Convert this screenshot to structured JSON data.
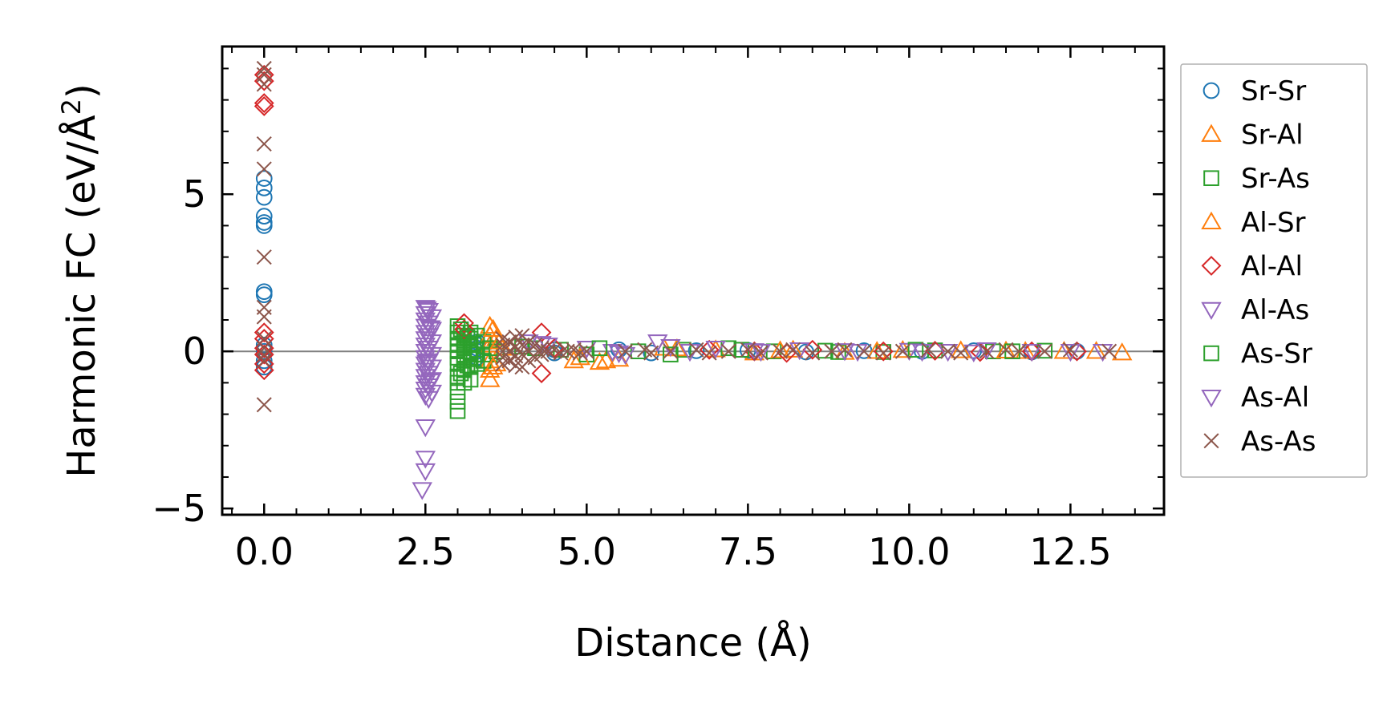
{
  "chart_data": {
    "type": "scatter",
    "title": "",
    "xlabel": "Distance (Å)",
    "ylabel": "Harmonic FC (eV/Å²)",
    "ylabel_main": "Harmonic FC (eV/Å",
    "ylabel_sup": "2",
    "ylabel_close": ")",
    "xlim": [
      -0.65,
      13.95
    ],
    "ylim": [
      -5.2,
      9.7
    ],
    "xticks": [
      0,
      2.5,
      5,
      7.5,
      10,
      12.5
    ],
    "xtick_labels": [
      "0.0",
      "2.5",
      "5.0",
      "7.5",
      "10.0",
      "12.5"
    ],
    "yticks": [
      -5,
      0,
      5
    ],
    "ytick_labels": [
      "−5",
      "0",
      "5"
    ],
    "zero_line": true,
    "legend_position": "right-outside",
    "series": [
      {
        "name": "Sr-Sr",
        "marker": "circle",
        "color": "#1f77b4",
        "points": [
          [
            0,
            5.5
          ],
          [
            0,
            5.2
          ],
          [
            0,
            4.9
          ],
          [
            0,
            4.3
          ],
          [
            0,
            4.1
          ],
          [
            0,
            4.0
          ],
          [
            0,
            1.9
          ],
          [
            0,
            1.8
          ],
          [
            0,
            0.2
          ],
          [
            0,
            0.0
          ],
          [
            0,
            -0.3
          ],
          [
            0,
            -0.5
          ],
          [
            3.3,
            0.3
          ],
          [
            3.3,
            0.2
          ],
          [
            3.3,
            0.1
          ],
          [
            3.3,
            0.0
          ],
          [
            3.3,
            -0.1
          ],
          [
            3.3,
            -0.2
          ],
          [
            4.5,
            0.05
          ],
          [
            4.5,
            -0.05
          ],
          [
            5.5,
            0.05
          ],
          [
            6.0,
            -0.05
          ],
          [
            6.7,
            0.02
          ],
          [
            7.5,
            0.03
          ],
          [
            8.4,
            -0.02
          ],
          [
            9.3,
            0.02
          ],
          [
            10.2,
            0.0
          ],
          [
            11.0,
            0.02
          ],
          [
            11.9,
            -0.02
          ],
          [
            12.6,
            0.0
          ]
        ]
      },
      {
        "name": "Sr-Al",
        "marker": "triangle-up",
        "color": "#ff7f0e",
        "points": [
          [
            3.5,
            0.8
          ],
          [
            3.5,
            0.5
          ],
          [
            3.5,
            0.2
          ],
          [
            3.5,
            -0.3
          ],
          [
            3.5,
            -0.6
          ],
          [
            3.5,
            -0.9
          ],
          [
            3.6,
            0.4
          ],
          [
            3.6,
            -0.4
          ],
          [
            3.7,
            0.1
          ],
          [
            4.8,
            -0.3
          ],
          [
            5.2,
            -0.35
          ],
          [
            5.5,
            -0.25
          ],
          [
            6.2,
            0.1
          ],
          [
            7.0,
            0.05
          ],
          [
            7.6,
            -0.05
          ],
          [
            8.2,
            0.04
          ],
          [
            9.0,
            -0.03
          ],
          [
            9.9,
            0.03
          ],
          [
            10.8,
            0.02
          ],
          [
            11.8,
            0.0
          ],
          [
            12.4,
            0.0
          ],
          [
            13.3,
            -0.05
          ]
        ]
      },
      {
        "name": "Sr-As",
        "marker": "square",
        "color": "#2ca02c",
        "points": [
          [
            3.0,
            0.8
          ],
          [
            3.0,
            0.6
          ],
          [
            3.0,
            0.4
          ],
          [
            3.0,
            0.2
          ],
          [
            3.0,
            0.0
          ],
          [
            3.0,
            -0.2
          ],
          [
            3.0,
            -0.4
          ],
          [
            3.0,
            -0.8
          ],
          [
            3.0,
            -1.0
          ],
          [
            3.0,
            -1.3
          ],
          [
            3.0,
            -1.6
          ],
          [
            3.0,
            -1.9
          ],
          [
            3.1,
            0.5
          ],
          [
            3.1,
            0.3
          ],
          [
            3.1,
            0.1
          ],
          [
            3.1,
            -0.1
          ],
          [
            3.1,
            -0.3
          ],
          [
            3.1,
            -0.6
          ],
          [
            3.1,
            -1.0
          ],
          [
            3.2,
            0.6
          ],
          [
            3.2,
            0.4
          ],
          [
            3.2,
            0.2
          ],
          [
            3.2,
            0.0
          ],
          [
            3.2,
            -0.2
          ],
          [
            3.2,
            -0.5
          ],
          [
            3.2,
            -0.9
          ],
          [
            3.3,
            0.5
          ],
          [
            3.3,
            -0.1
          ],
          [
            3.3,
            -0.4
          ],
          [
            3.4,
            0.3
          ],
          [
            3.4,
            -0.3
          ],
          [
            3.5,
            0.1
          ],
          [
            3.5,
            -0.1
          ],
          [
            3.6,
            0.0
          ],
          [
            4.2,
            0.1
          ],
          [
            4.6,
            0.05
          ],
          [
            5.0,
            -0.1
          ],
          [
            5.8,
            0.0
          ],
          [
            6.5,
            0.05
          ],
          [
            7.2,
            0.1
          ],
          [
            7.9,
            0.0
          ],
          [
            8.7,
            0.02
          ],
          [
            9.6,
            -0.02
          ],
          [
            10.4,
            0.03
          ],
          [
            11.3,
            0.0
          ],
          [
            12.1,
            0.02
          ]
        ]
      },
      {
        "name": "Al-Sr",
        "marker": "triangle-up",
        "color": "#ff7f0e",
        "points": [
          [
            3.55,
            0.7
          ],
          [
            3.55,
            -0.5
          ],
          [
            3.65,
            0.3
          ],
          [
            4.9,
            -0.2
          ],
          [
            5.3,
            -0.3
          ],
          [
            6.4,
            0.08
          ],
          [
            8.0,
            0.02
          ],
          [
            9.5,
            0.0
          ],
          [
            11.5,
            0.01
          ],
          [
            12.9,
            0.0
          ]
        ]
      },
      {
        "name": "Al-Al",
        "marker": "diamond",
        "color": "#d62728",
        "points": [
          [
            0,
            8.8
          ],
          [
            0,
            8.6
          ],
          [
            0,
            7.9
          ],
          [
            0,
            7.8
          ],
          [
            0,
            0.6
          ],
          [
            0,
            0.4
          ],
          [
            0,
            0.1
          ],
          [
            0,
            -0.1
          ],
          [
            0,
            -0.4
          ],
          [
            0,
            -0.6
          ],
          [
            3.1,
            0.9
          ],
          [
            3.1,
            0.7
          ],
          [
            4.3,
            0.6
          ],
          [
            4.3,
            -0.7
          ],
          [
            4.5,
            0.1
          ],
          [
            6.9,
            0.05
          ],
          [
            7.6,
            0.0
          ],
          [
            8.1,
            -0.05
          ],
          [
            8.5,
            0.05
          ],
          [
            9.6,
            0.0
          ],
          [
            10.4,
            0.02
          ],
          [
            11.1,
            -0.02
          ],
          [
            11.9,
            0.0
          ],
          [
            12.6,
            0.0
          ]
        ]
      },
      {
        "name": "Al-As",
        "marker": "triangle-down",
        "color": "#9467bd",
        "points": [
          [
            2.5,
            1.4
          ],
          [
            2.5,
            1.2
          ],
          [
            2.5,
            1.0
          ],
          [
            2.5,
            0.8
          ],
          [
            2.5,
            0.6
          ],
          [
            2.5,
            0.4
          ],
          [
            2.5,
            0.2
          ],
          [
            2.5,
            0.0
          ],
          [
            2.5,
            -0.2
          ],
          [
            2.5,
            -0.4
          ],
          [
            2.5,
            -0.6
          ],
          [
            2.5,
            -0.8
          ],
          [
            2.5,
            -1.0
          ],
          [
            2.5,
            -1.2
          ],
          [
            2.5,
            -1.4
          ],
          [
            2.55,
            1.3
          ],
          [
            2.55,
            0.9
          ],
          [
            2.55,
            0.5
          ],
          [
            2.55,
            0.1
          ],
          [
            2.55,
            -0.3
          ],
          [
            2.55,
            -0.7
          ],
          [
            2.55,
            -1.1
          ],
          [
            2.55,
            -1.5
          ],
          [
            2.6,
            1.1
          ],
          [
            2.6,
            0.7
          ],
          [
            2.6,
            0.3
          ],
          [
            2.6,
            -0.1
          ],
          [
            2.6,
            -0.5
          ],
          [
            2.6,
            -0.9
          ],
          [
            2.6,
            -1.3
          ],
          [
            2.5,
            -2.4
          ],
          [
            2.5,
            -3.4
          ],
          [
            2.5,
            -3.8
          ],
          [
            2.45,
            -4.4
          ],
          [
            4.1,
            0.3
          ],
          [
            4.4,
            0.2
          ],
          [
            5.0,
            0.1
          ],
          [
            5.4,
            0.0
          ],
          [
            5.6,
            -0.1
          ],
          [
            6.1,
            0.3
          ],
          [
            6.6,
            0.0
          ],
          [
            7.0,
            0.1
          ],
          [
            7.7,
            0.0
          ],
          [
            8.3,
            0.05
          ],
          [
            9.2,
            0.0
          ],
          [
            10.0,
            0.03
          ],
          [
            10.6,
            0.0
          ],
          [
            11.2,
            0.05
          ],
          [
            12.5,
            0.0
          ],
          [
            13.0,
            0.0
          ]
        ]
      },
      {
        "name": "As-Sr",
        "marker": "square",
        "color": "#2ca02c",
        "points": [
          [
            3.05,
            0.7
          ],
          [
            3.05,
            -0.7
          ],
          [
            3.15,
            0.45
          ],
          [
            3.15,
            -0.45
          ],
          [
            3.25,
            0.25
          ],
          [
            3.25,
            -0.25
          ],
          [
            4.0,
            0.15
          ],
          [
            5.2,
            0.1
          ],
          [
            6.3,
            -0.1
          ],
          [
            7.4,
            0.05
          ],
          [
            8.9,
            -0.02
          ],
          [
            10.1,
            0.05
          ],
          [
            11.6,
            0.0
          ]
        ]
      },
      {
        "name": "As-Al",
        "marker": "triangle-down",
        "color": "#9467bd",
        "points": [
          [
            2.52,
            1.35
          ],
          [
            2.52,
            -0.35
          ],
          [
            2.58,
            0.75
          ],
          [
            2.58,
            -0.95
          ],
          [
            4.3,
            0.25
          ],
          [
            5.5,
            -0.05
          ],
          [
            6.3,
            0.15
          ],
          [
            7.6,
            0.02
          ],
          [
            9.0,
            0.02
          ],
          [
            10.2,
            0.0
          ],
          [
            11.0,
            -0.02
          ],
          [
            11.9,
            0.0
          ]
        ]
      },
      {
        "name": "As-As",
        "marker": "x",
        "color": "#8c564b",
        "points": [
          [
            0,
            9.0
          ],
          [
            0,
            8.8
          ],
          [
            0,
            8.5
          ],
          [
            0,
            6.6
          ],
          [
            0,
            5.8
          ],
          [
            0,
            3.0
          ],
          [
            0,
            1.4
          ],
          [
            0,
            1.1
          ],
          [
            0,
            0.4
          ],
          [
            0,
            0.1
          ],
          [
            0,
            -0.1
          ],
          [
            0,
            -0.3
          ],
          [
            0,
            -1.7
          ],
          [
            3.7,
            0.4
          ],
          [
            3.7,
            0.2
          ],
          [
            3.7,
            0.0
          ],
          [
            3.7,
            -0.2
          ],
          [
            3.7,
            -0.4
          ],
          [
            3.8,
            0.3
          ],
          [
            3.8,
            0.0
          ],
          [
            3.8,
            -0.3
          ],
          [
            3.9,
            0.45
          ],
          [
            3.9,
            0.15
          ],
          [
            3.9,
            -0.15
          ],
          [
            3.9,
            -0.45
          ],
          [
            4.0,
            0.5
          ],
          [
            4.0,
            0.2
          ],
          [
            4.0,
            -0.1
          ],
          [
            4.0,
            -0.5
          ],
          [
            4.1,
            0.3
          ],
          [
            4.1,
            0.0
          ],
          [
            4.1,
            -0.3
          ],
          [
            4.2,
            0.2
          ],
          [
            4.2,
            -0.2
          ],
          [
            4.3,
            0.1
          ],
          [
            4.3,
            -0.1
          ],
          [
            4.4,
            0.0
          ],
          [
            4.5,
            0.05
          ],
          [
            4.6,
            -0.05
          ],
          [
            4.7,
            0.0
          ],
          [
            4.8,
            0.05
          ],
          [
            4.9,
            -0.05
          ],
          [
            5.0,
            0.0
          ],
          [
            5.6,
            0.0
          ],
          [
            5.9,
            0.05
          ],
          [
            6.0,
            -0.05
          ],
          [
            6.3,
            0.0
          ],
          [
            6.7,
            0.05
          ],
          [
            6.9,
            -0.05
          ],
          [
            7.2,
            0.0
          ],
          [
            7.5,
            0.05
          ],
          [
            7.7,
            -0.05
          ],
          [
            8.0,
            0.0
          ],
          [
            8.2,
            0.05
          ],
          [
            8.5,
            -0.05
          ],
          [
            8.8,
            0.0
          ],
          [
            9.0,
            0.05
          ],
          [
            9.3,
            0.0
          ],
          [
            9.6,
            -0.05
          ],
          [
            9.9,
            0.0
          ],
          [
            10.3,
            0.05
          ],
          [
            10.6,
            0.0
          ],
          [
            10.8,
            -0.05
          ],
          [
            11.2,
            0.0
          ],
          [
            11.5,
            0.05
          ],
          [
            11.7,
            0.0
          ],
          [
            12.1,
            0.0
          ],
          [
            12.5,
            0.05
          ],
          [
            13.1,
            0.0
          ]
        ]
      }
    ]
  }
}
